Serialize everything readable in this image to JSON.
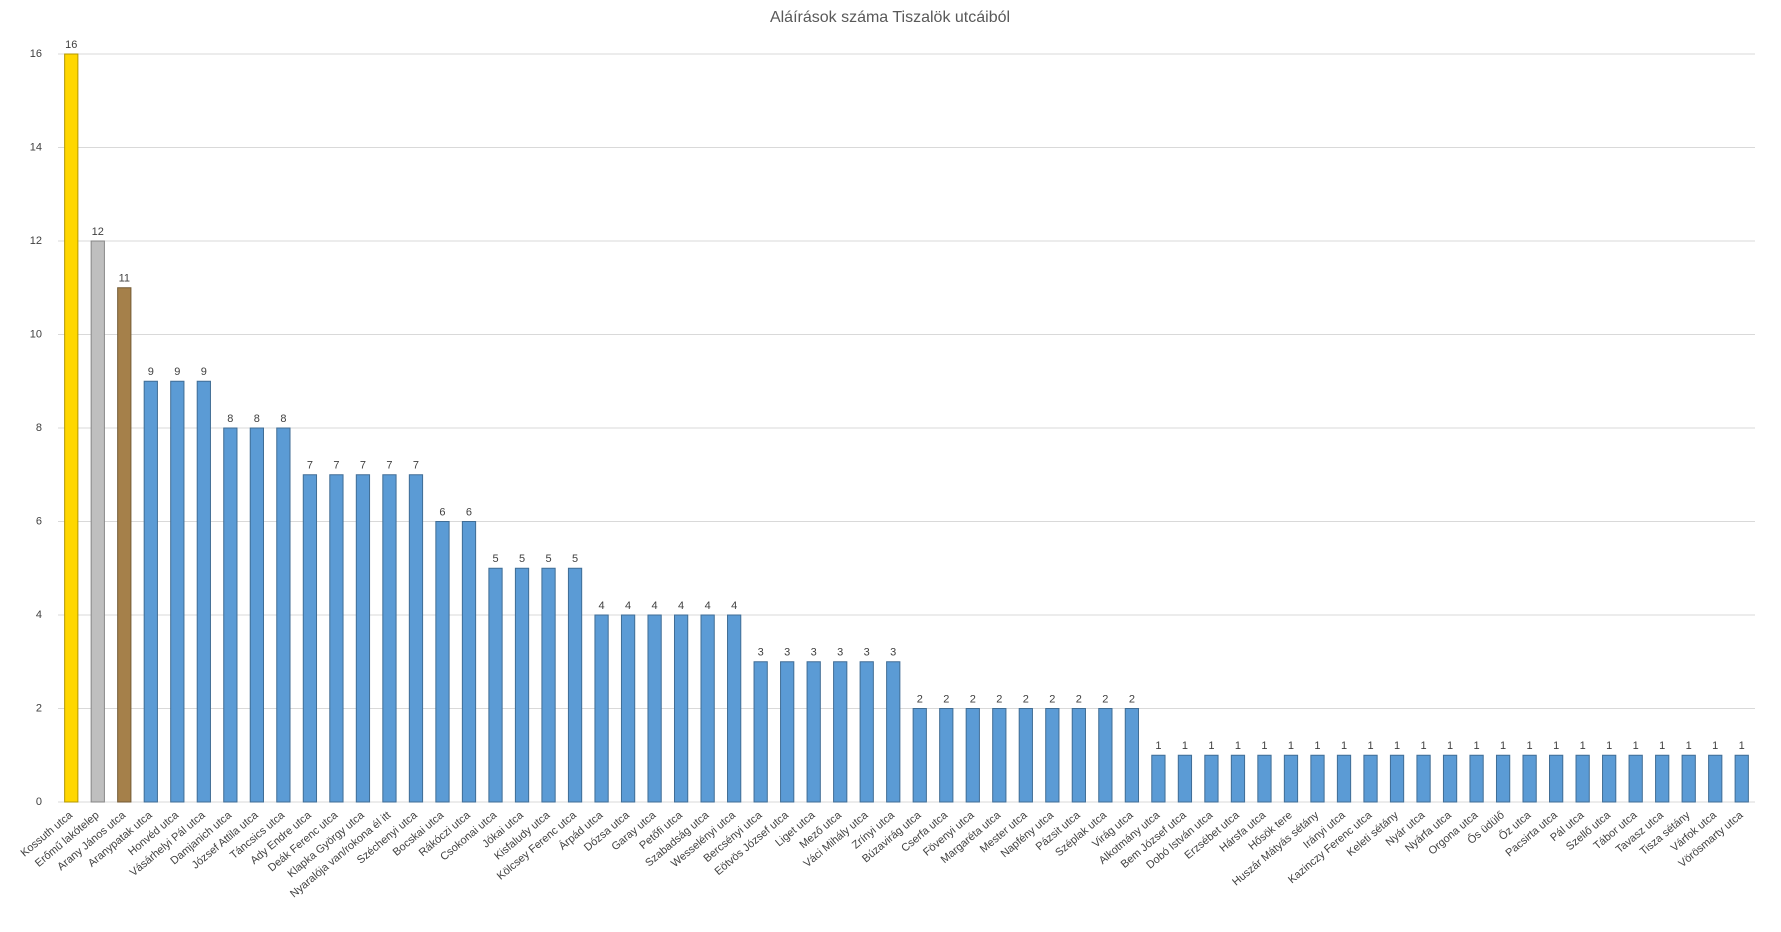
{
  "chart_data": {
    "type": "bar",
    "title": "Aláírások száma Tiszalök utcáiból",
    "categories": [
      "Kossuth utca",
      "Erőmű lakótelep",
      "Arany János utca",
      "Aranypatak utca",
      "Honvéd utca",
      "Vásárhelyi Pál utca",
      "Damjanich utca",
      "József Attila utca",
      "Táncsics utca",
      "Ady Endre utca",
      "Deák Ferenc utca",
      "Klapka György utca",
      "Nyaralója van/rokona él itt",
      "Széchenyi utca",
      "Bocskai utca",
      "Rákóczi utca",
      "Csokonai utca",
      "Jókai utca",
      "Kisfaludy utca",
      "Kölcsey Ferenc utca",
      "Árpád utca",
      "Dózsa utca",
      "Garay utca",
      "Petőfi utca",
      "Szabadság utca",
      "Wesselényi utca",
      "Bercsényi utca",
      "Eötvös József utca",
      "Liget utca",
      "Mező utca",
      "Váci Mihály utca",
      "Zrínyi utca",
      "Búzavirág utca",
      "Cserfa utca",
      "Fövenyi utca",
      "Margaréta utca",
      "Mester utca",
      "Napfény utca",
      "Pázsit utca",
      "Széplak utca",
      "Virág utca",
      "Alkotmány utca",
      "Bem József utca",
      "Dobó István utca",
      "Erzsébet utca",
      "Hársfa utca",
      "Hősök tere",
      "Huszár Mátyás sétány",
      "Irányi utca",
      "Kazinczy Ferenc utca",
      "Keleti sétány",
      "Nyár utca",
      "Nyárfa utca",
      "Orgona utca",
      "Ős üdülő",
      "Őz utca",
      "Pacsirta utca",
      "Pál utca",
      "Szellő utca",
      "Tábor utca",
      "Tavasz utca",
      "Tisza sétány",
      "Várfok utca",
      "Vörösmarty utca"
    ],
    "values": [
      16,
      12,
      11,
      9,
      9,
      9,
      8,
      8,
      8,
      7,
      7,
      7,
      7,
      7,
      6,
      6,
      5,
      5,
      5,
      5,
      4,
      4,
      4,
      4,
      4,
      4,
      3,
      3,
      3,
      3,
      3,
      3,
      2,
      2,
      2,
      2,
      2,
      2,
      2,
      2,
      2,
      1,
      1,
      1,
      1,
      1,
      1,
      1,
      1,
      1,
      1,
      1,
      1,
      1,
      1,
      1,
      1,
      1,
      1,
      1,
      1,
      1,
      1,
      1
    ],
    "color": "#5b9bd5",
    "colors": [
      "#ffd700",
      "#bfbfbf",
      "#a5804a"
    ],
    "ylim": [
      0,
      16
    ],
    "yticks": [
      0,
      2,
      4,
      6,
      8,
      10,
      12,
      14,
      16
    ],
    "grid": true
  }
}
